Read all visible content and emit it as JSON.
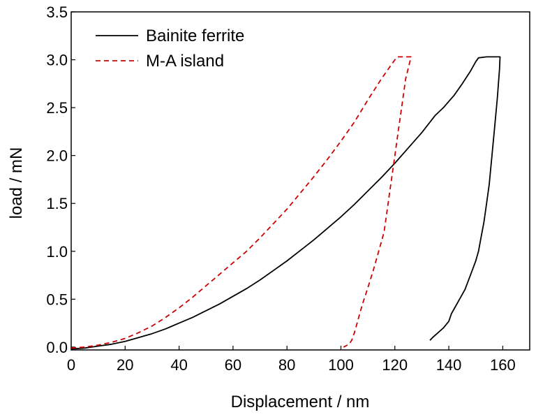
{
  "chart_data": {
    "type": "line",
    "xlabel": "Displacement / nm",
    "ylabel": "load / mN",
    "xlim": [
      0,
      170
    ],
    "ylim": [
      -0.03,
      3.5
    ],
    "xticks": [
      0,
      20,
      40,
      60,
      80,
      100,
      120,
      140,
      160
    ],
    "yticks": [
      0.0,
      0.5,
      1.0,
      1.5,
      2.0,
      2.5,
      3.0,
      3.5
    ],
    "xtick_labels": [
      "0",
      "20",
      "40",
      "60",
      "80",
      "100",
      "120",
      "140",
      "160"
    ],
    "ytick_labels": [
      "0.0",
      "0.5",
      "1.0",
      "1.5",
      "2.0",
      "2.5",
      "3.0",
      "3.5"
    ],
    "legend_position": "top-left",
    "grid": false,
    "series": [
      {
        "name": "Bainite ferrite",
        "color": "#000000",
        "style": "solid",
        "points": [
          [
            0,
            -0.02
          ],
          [
            5,
            -0.01
          ],
          [
            10,
            0.01
          ],
          [
            15,
            0.03
          ],
          [
            20,
            0.06
          ],
          [
            25,
            0.1
          ],
          [
            30,
            0.14
          ],
          [
            35,
            0.19
          ],
          [
            40,
            0.25
          ],
          [
            45,
            0.31
          ],
          [
            50,
            0.38
          ],
          [
            55,
            0.45
          ],
          [
            60,
            0.53
          ],
          [
            65,
            0.61
          ],
          [
            70,
            0.7
          ],
          [
            75,
            0.8
          ],
          [
            80,
            0.9
          ],
          [
            85,
            1.01
          ],
          [
            90,
            1.12
          ],
          [
            95,
            1.24
          ],
          [
            100,
            1.36
          ],
          [
            105,
            1.49
          ],
          [
            110,
            1.63
          ],
          [
            115,
            1.77
          ],
          [
            120,
            1.92
          ],
          [
            125,
            2.08
          ],
          [
            130,
            2.24
          ],
          [
            135,
            2.42
          ],
          [
            138,
            2.5
          ],
          [
            142,
            2.63
          ],
          [
            145,
            2.75
          ],
          [
            148,
            2.88
          ],
          [
            150,
            2.98
          ],
          [
            151,
            3.02
          ],
          [
            154,
            3.03
          ],
          [
            159,
            3.03
          ],
          [
            158.8,
            2.9
          ],
          [
            158,
            2.6
          ],
          [
            157,
            2.3
          ],
          [
            156,
            2.0
          ],
          [
            155,
            1.7
          ],
          [
            154,
            1.5
          ],
          [
            153,
            1.3
          ],
          [
            152,
            1.15
          ],
          [
            151,
            1.0
          ],
          [
            150,
            0.9
          ],
          [
            148,
            0.75
          ],
          [
            146,
            0.6
          ],
          [
            144,
            0.5
          ],
          [
            142,
            0.4
          ],
          [
            141,
            0.35
          ],
          [
            140,
            0.27
          ],
          [
            138,
            0.2
          ],
          [
            136,
            0.15
          ],
          [
            134,
            0.1
          ],
          [
            133,
            0.07
          ]
        ]
      },
      {
        "name": "M-A island",
        "color": "#cc0000",
        "style": "dashed",
        "points": [
          [
            0,
            -0.01
          ],
          [
            5,
            0.0
          ],
          [
            10,
            0.02
          ],
          [
            15,
            0.05
          ],
          [
            20,
            0.09
          ],
          [
            25,
            0.15
          ],
          [
            30,
            0.22
          ],
          [
            35,
            0.31
          ],
          [
            40,
            0.41
          ],
          [
            45,
            0.52
          ],
          [
            50,
            0.64
          ],
          [
            55,
            0.76
          ],
          [
            60,
            0.88
          ],
          [
            65,
            1.0
          ],
          [
            70,
            1.14
          ],
          [
            75,
            1.29
          ],
          [
            80,
            1.44
          ],
          [
            85,
            1.61
          ],
          [
            90,
            1.78
          ],
          [
            95,
            1.96
          ],
          [
            100,
            2.15
          ],
          [
            105,
            2.35
          ],
          [
            110,
            2.58
          ],
          [
            115,
            2.8
          ],
          [
            118,
            2.92
          ],
          [
            120,
            3.0
          ],
          [
            121,
            3.03
          ],
          [
            123,
            3.03
          ],
          [
            126,
            3.03
          ],
          [
            124,
            2.8
          ],
          [
            123,
            2.6
          ],
          [
            122,
            2.4
          ],
          [
            121,
            2.2
          ],
          [
            120,
            2.0
          ],
          [
            119,
            1.8
          ],
          [
            118,
            1.6
          ],
          [
            117,
            1.4
          ],
          [
            116,
            1.2
          ],
          [
            114,
            1.0
          ],
          [
            112,
            0.8
          ],
          [
            110,
            0.62
          ],
          [
            108,
            0.45
          ],
          [
            107,
            0.35
          ],
          [
            106,
            0.25
          ],
          [
            105,
            0.15
          ],
          [
            104,
            0.07
          ],
          [
            103,
            0.03
          ],
          [
            101,
            0.0
          ]
        ]
      }
    ]
  }
}
